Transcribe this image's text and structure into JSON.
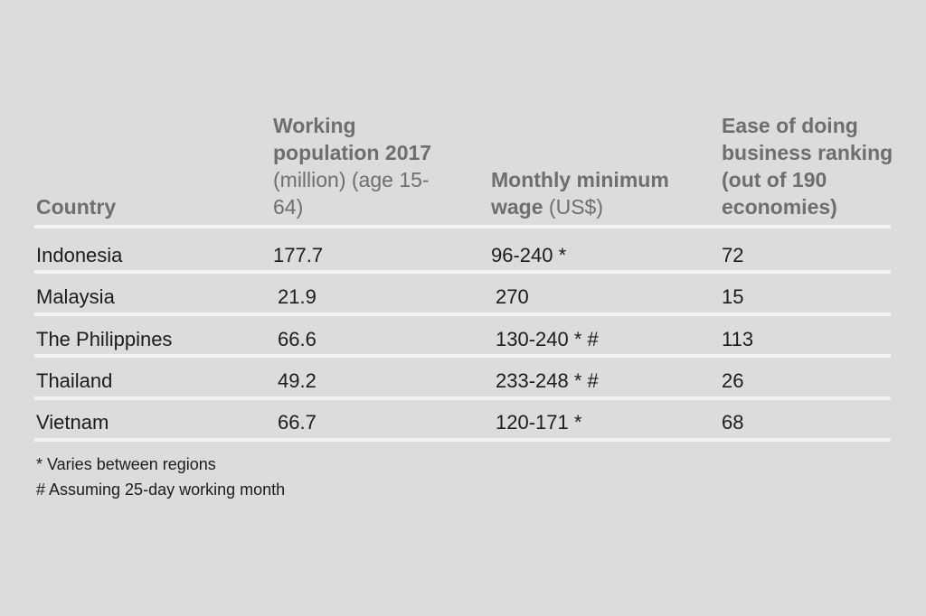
{
  "chart_data": {
    "type": "table",
    "columns": [
      {
        "bold": "Country",
        "normal": ""
      },
      {
        "bold": "Working population 2017",
        "normal": " (million) (age 15-64)"
      },
      {
        "bold": "Monthly minimum wage",
        "normal": " (US$)"
      },
      {
        "bold": "Ease of doing business ranking (out of 190 economies)",
        "normal": ""
      }
    ],
    "rows": [
      [
        "Indonesia",
        "177.7",
        "96-240 *",
        "72"
      ],
      [
        "Malaysia",
        "21.9",
        "270",
        "15"
      ],
      [
        "The Philippines",
        "66.6",
        "130-240 * #",
        "113"
      ],
      [
        "Thailand",
        "49.2",
        "233-248 * #",
        "26"
      ],
      [
        "Vietnam",
        "66.7",
        "120-171 *",
        "68"
      ]
    ],
    "footnotes": [
      "* Varies between regions",
      "# Assuming 25-day working month"
    ]
  },
  "colors": {
    "background": "#dcdcdc",
    "header_text": "#6e6e6e",
    "body_text": "#1c1c1c",
    "rule": "#f3f3f3"
  }
}
